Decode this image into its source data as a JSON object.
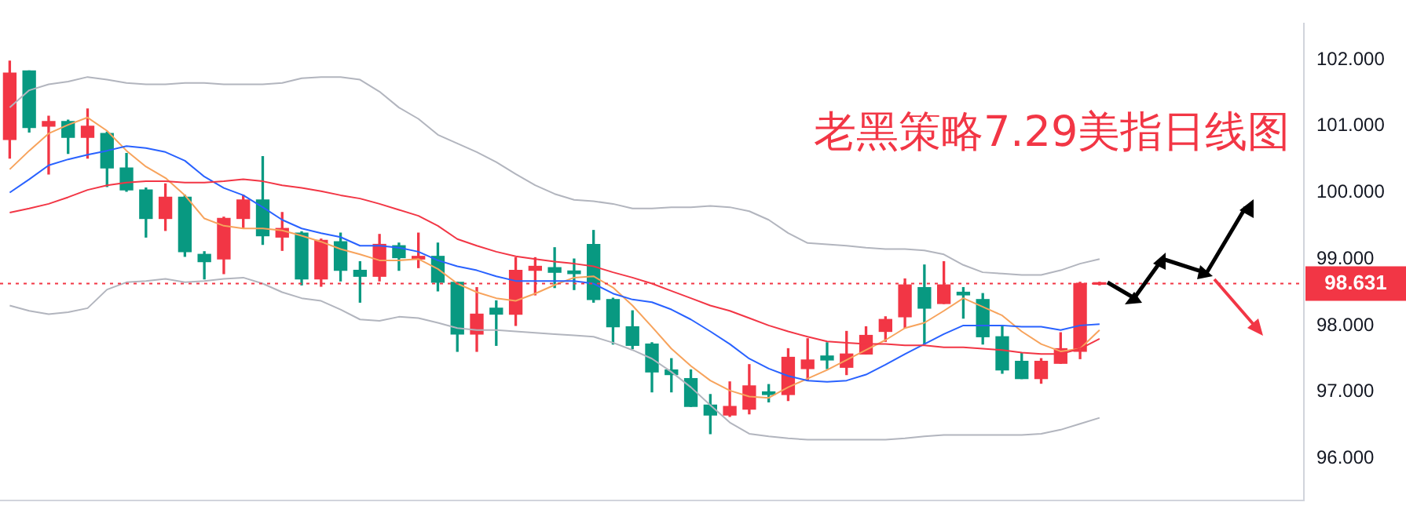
{
  "chart_data": {
    "type": "candlestick",
    "title": "老黑策略7.29美指日线图",
    "categories": [
      null,
      null,
      null,
      null,
      null,
      null,
      null,
      null,
      null,
      null,
      null,
      null,
      null,
      null,
      null,
      null,
      null,
      null,
      null,
      null,
      null,
      null,
      null,
      null,
      null,
      null,
      null,
      null,
      null,
      null,
      null,
      null,
      null,
      null,
      null,
      null,
      null,
      null,
      null,
      null,
      null,
      null,
      null,
      null,
      null,
      null,
      null,
      null,
      null,
      null,
      null,
      null,
      null,
      null,
      null,
      null,
      null,
      null,
      null,
      null,
      null,
      null,
      null,
      null,
      null,
      null,
      null
    ],
    "ohlc": [
      [
        100.8,
        101.98,
        100.52,
        101.8
      ],
      [
        101.83,
        101.83,
        100.91,
        100.98
      ],
      [
        101.0,
        101.15,
        100.28,
        101.07
      ],
      [
        101.07,
        101.09,
        100.59,
        100.83
      ],
      [
        100.83,
        101.26,
        100.52,
        101.0
      ],
      [
        100.89,
        100.91,
        100.09,
        100.37
      ],
      [
        100.37,
        100.59,
        100.02,
        100.04
      ],
      [
        100.04,
        100.07,
        99.33,
        99.61
      ],
      [
        99.61,
        100.13,
        99.43,
        99.93
      ],
      [
        99.93,
        99.96,
        99.04,
        99.11
      ],
      [
        99.07,
        99.11,
        98.7,
        98.96
      ],
      [
        99.0,
        99.63,
        98.78,
        99.61
      ],
      [
        99.61,
        99.96,
        99.46,
        99.89
      ],
      [
        99.89,
        100.54,
        99.22,
        99.35
      ],
      [
        99.33,
        99.7,
        99.13,
        99.46
      ],
      [
        99.39,
        99.41,
        98.61,
        98.7
      ],
      [
        98.7,
        99.3,
        98.59,
        99.28
      ],
      [
        99.26,
        99.39,
        98.67,
        98.83
      ],
      [
        98.83,
        98.96,
        98.35,
        98.74
      ],
      [
        98.74,
        99.37,
        98.67,
        99.22
      ],
      [
        99.2,
        99.24,
        98.83,
        99.02
      ],
      [
        99.0,
        99.39,
        98.87,
        99.04
      ],
      [
        99.04,
        99.24,
        98.52,
        98.65
      ],
      [
        98.65,
        98.65,
        97.61,
        97.87
      ],
      [
        97.87,
        98.57,
        97.61,
        98.17
      ],
      [
        98.26,
        98.37,
        97.7,
        98.17
      ],
      [
        98.17,
        99.02,
        98.0,
        98.83
      ],
      [
        98.83,
        99.02,
        98.46,
        98.89
      ],
      [
        98.87,
        99.17,
        98.57,
        98.8
      ],
      [
        98.82,
        99.0,
        98.54,
        98.78
      ],
      [
        99.22,
        99.43,
        98.35,
        98.39
      ],
      [
        98.39,
        98.41,
        97.72,
        97.98
      ],
      [
        97.98,
        98.22,
        97.65,
        97.7
      ],
      [
        97.72,
        97.74,
        97.0,
        97.3
      ],
      [
        97.33,
        97.5,
        97.0,
        97.26
      ],
      [
        97.2,
        97.33,
        96.78,
        96.78
      ],
      [
        96.8,
        96.96,
        96.37,
        96.65
      ],
      [
        96.65,
        97.15,
        96.63,
        96.78
      ],
      [
        96.74,
        97.41,
        96.67,
        97.09
      ],
      [
        97.0,
        97.11,
        96.85,
        96.96
      ],
      [
        96.96,
        97.65,
        96.87,
        97.52
      ],
      [
        97.35,
        97.8,
        97.17,
        97.48
      ],
      [
        97.54,
        97.74,
        97.35,
        97.48
      ],
      [
        97.37,
        97.91,
        97.26,
        97.57
      ],
      [
        97.57,
        97.98,
        97.57,
        97.85
      ],
      [
        97.91,
        98.13,
        97.76,
        98.09
      ],
      [
        98.13,
        98.7,
        97.96,
        98.61
      ],
      [
        98.57,
        98.91,
        97.72,
        98.26
      ],
      [
        98.33,
        98.96,
        98.33,
        98.61
      ],
      [
        98.5,
        98.57,
        98.11,
        98.46
      ],
      [
        98.39,
        98.48,
        97.72,
        97.83
      ],
      [
        97.83,
        97.98,
        97.28,
        97.33
      ],
      [
        97.46,
        97.59,
        97.2,
        97.2
      ],
      [
        97.2,
        97.5,
        97.13,
        97.46
      ],
      [
        97.43,
        97.89,
        97.43,
        97.65
      ],
      [
        97.61,
        98.65,
        97.5,
        98.63
      ],
      [
        98.62,
        98.65,
        98.61,
        98.631
      ],
      null,
      null,
      null,
      null,
      null,
      null,
      null,
      null,
      null,
      null
    ],
    "colors": [
      "#f23645",
      "#089981",
      "#f23645",
      "#089981",
      "#f23645",
      "#089981",
      "#089981",
      "#089981",
      "#f23645",
      "#089981",
      "#089981",
      "#f23645",
      "#f23645",
      "#089981",
      "#f23645",
      "#089981",
      "#f23645",
      "#089981",
      "#089981",
      "#f23645",
      "#089981",
      "#f23645",
      "#089981",
      "#089981",
      "#f23645",
      "#089981",
      "#f23645",
      "#f23645",
      "#089981",
      "#089981",
      "#089981",
      "#089981",
      "#089981",
      "#089981",
      "#089981",
      "#089981",
      "#089981",
      "#f23645",
      "#f23645",
      "#089981",
      "#f23645",
      "#f23645",
      "#089981",
      "#f23645",
      "#f23645",
      "#f23645",
      "#f23645",
      "#089981",
      "#f23645",
      "#089981",
      "#089981",
      "#089981",
      "#089981",
      "#f23645",
      "#f23645",
      "#f23645",
      "#f23645",
      null,
      null,
      null,
      null,
      null,
      null,
      null,
      null,
      null,
      null
    ],
    "series": [
      {
        "type": "line",
        "color": "#b2b5be",
        "values": [
          101.28,
          101.54,
          101.63,
          101.67,
          101.74,
          101.7,
          101.65,
          101.63,
          101.63,
          101.65,
          101.65,
          101.63,
          101.63,
          101.63,
          101.65,
          101.72,
          101.74,
          101.74,
          101.7,
          101.52,
          101.28,
          101.11,
          100.87,
          100.74,
          100.61,
          100.46,
          100.28,
          100.11,
          99.98,
          99.89,
          99.87,
          99.83,
          99.76,
          99.76,
          99.78,
          99.78,
          99.8,
          99.78,
          99.72,
          99.59,
          99.39,
          99.24,
          99.22,
          99.2,
          99.17,
          99.15,
          99.15,
          99.13,
          99.07,
          98.91,
          98.8,
          98.78,
          98.76,
          98.76,
          98.83,
          98.93,
          99.0,
          null,
          null,
          null,
          null,
          null,
          null,
          null,
          null,
          null,
          null
        ]
      },
      {
        "type": "line",
        "color": "#b2b5be",
        "values": [
          98.3,
          98.22,
          98.17,
          98.2,
          98.26,
          98.54,
          98.65,
          98.67,
          98.7,
          98.65,
          98.67,
          98.7,
          98.72,
          98.63,
          98.5,
          98.41,
          98.37,
          98.24,
          98.09,
          98.07,
          98.13,
          98.11,
          98.04,
          97.96,
          97.93,
          97.93,
          97.91,
          97.89,
          97.87,
          97.85,
          97.83,
          97.74,
          97.63,
          97.5,
          97.3,
          97.07,
          96.8,
          96.54,
          96.37,
          96.33,
          96.3,
          96.28,
          96.28,
          96.28,
          96.28,
          96.28,
          96.3,
          96.33,
          96.35,
          96.35,
          96.35,
          96.35,
          96.35,
          96.37,
          96.43,
          96.52,
          96.61,
          null,
          null,
          null,
          null,
          null,
          null,
          null,
          null,
          null,
          null
        ]
      },
      {
        "type": "line",
        "color": "#f23645",
        "values": [
          99.7,
          99.76,
          99.83,
          99.93,
          100.04,
          100.11,
          100.15,
          100.17,
          100.17,
          100.15,
          100.15,
          100.17,
          100.2,
          100.17,
          100.11,
          100.07,
          100.02,
          99.96,
          99.91,
          99.83,
          99.74,
          99.65,
          99.5,
          99.3,
          99.2,
          99.11,
          99.04,
          99.0,
          98.96,
          98.93,
          98.89,
          98.8,
          98.72,
          98.63,
          98.52,
          98.41,
          98.3,
          98.22,
          98.11,
          98.0,
          97.91,
          97.83,
          97.76,
          97.74,
          97.72,
          97.72,
          97.7,
          97.7,
          97.67,
          97.67,
          97.65,
          97.63,
          97.59,
          97.57,
          97.57,
          97.65,
          97.8,
          null,
          null,
          null,
          null,
          null,
          null,
          null,
          null,
          null,
          null
        ]
      },
      {
        "type": "line",
        "color": "#2962ff",
        "values": [
          100.0,
          100.2,
          100.41,
          100.5,
          100.57,
          100.63,
          100.7,
          100.67,
          100.61,
          100.48,
          100.24,
          100.07,
          99.96,
          99.78,
          99.59,
          99.46,
          99.39,
          99.33,
          99.2,
          99.2,
          99.17,
          99.11,
          98.98,
          98.89,
          98.83,
          98.74,
          98.67,
          98.67,
          98.67,
          98.67,
          98.63,
          98.48,
          98.39,
          98.35,
          98.24,
          98.09,
          97.91,
          97.72,
          97.5,
          97.35,
          97.24,
          97.17,
          97.15,
          97.17,
          97.26,
          97.41,
          97.57,
          97.72,
          97.87,
          98.0,
          98.0,
          98.0,
          97.98,
          97.98,
          97.93,
          98.0,
          98.02,
          null,
          null,
          null,
          null,
          null,
          null,
          null,
          null,
          null,
          null
        ]
      },
      {
        "type": "line",
        "color": "#f7a35c",
        "values": [
          100.35,
          100.63,
          100.89,
          101.02,
          101.13,
          100.93,
          100.63,
          100.39,
          100.22,
          99.96,
          99.61,
          99.5,
          99.46,
          99.46,
          99.43,
          99.35,
          99.26,
          99.15,
          99.07,
          98.98,
          98.98,
          99.0,
          98.85,
          98.63,
          98.5,
          98.41,
          98.37,
          98.48,
          98.61,
          98.72,
          98.74,
          98.57,
          98.3,
          97.98,
          97.65,
          97.39,
          97.17,
          97.02,
          96.93,
          96.91,
          97.07,
          97.2,
          97.33,
          97.48,
          97.63,
          97.78,
          97.96,
          98.04,
          98.22,
          98.41,
          98.28,
          98.15,
          97.91,
          97.72,
          97.61,
          97.65,
          97.93,
          null,
          null,
          null,
          null,
          null,
          null,
          null,
          null,
          null,
          null
        ]
      }
    ],
    "ylim": [
      95.37,
      102.54
    ],
    "yticks": [
      {
        "value": 96,
        "label": "96.000"
      },
      {
        "value": 97,
        "label": "97.000"
      },
      {
        "value": 98,
        "label": "98.000"
      },
      {
        "value": 99,
        "label": "99.000"
      },
      {
        "value": 100,
        "label": "100.000"
      },
      {
        "value": 101,
        "label": "101.000"
      },
      {
        "value": 102,
        "label": "102.000"
      }
    ],
    "ref_lines": [
      {
        "axis": "y",
        "value": 98.631,
        "label": "98.631",
        "color": "#f23645",
        "line_style": "dotted"
      }
    ],
    "tick_labels": "y",
    "grid": false,
    "legend": false
  }
}
